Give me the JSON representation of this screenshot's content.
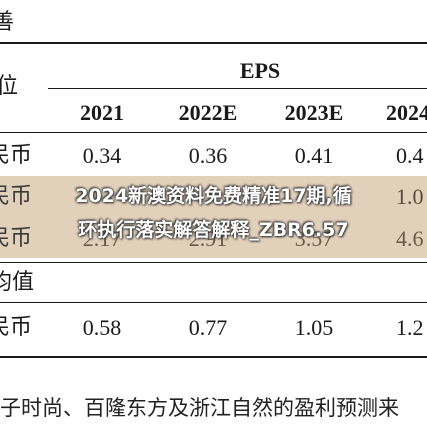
{
  "table": {
    "top_left_char": "善",
    "unit_col_char": "位",
    "eps_header": "EPS",
    "columns": [
      "2021",
      "2022E",
      "2023E",
      "2024"
    ],
    "rows": [
      {
        "label": "民币",
        "values": [
          "0.34",
          "0.36",
          "0.41",
          "0.4"
        ]
      },
      {
        "label": "民币",
        "values": [
          "",
          "",
          "",
          "1.0"
        ]
      },
      {
        "label": "民币",
        "values": [
          "2.17",
          "2.91",
          "3.57",
          "4.6"
        ]
      }
    ],
    "section_label": "均值",
    "avg_row": {
      "label": "民币",
      "values": [
        "0.58",
        "0.77",
        "1.05",
        "1.2"
      ]
    }
  },
  "overlay": {
    "line1": "2024新澳资料免费精准17期,循",
    "line2": "环执行落实解答解释_ZBR6.57"
  },
  "footer_text": "子时尚、百隆东方及浙江自然的盈利预测来"
}
